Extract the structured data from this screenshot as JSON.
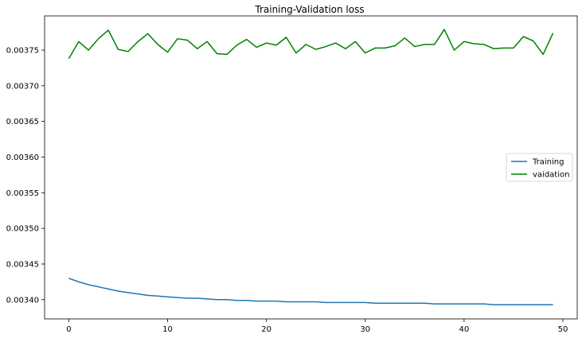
{
  "chart_data": {
    "type": "line",
    "title": "Training-Validation loss",
    "xlabel": "",
    "ylabel": "",
    "xlim": [
      -2.45,
      51.45
    ],
    "ylim": [
      0.003373,
      0.003798
    ],
    "xticks": [
      0,
      10,
      20,
      30,
      40,
      50
    ],
    "yticks": [
      0.0034,
      0.00345,
      0.0035,
      0.00355,
      0.0036,
      0.00365,
      0.0037,
      0.00375
    ],
    "ytick_labels": [
      "0.00340",
      "0.00345",
      "0.00350",
      "0.00355",
      "0.00360",
      "0.00365",
      "0.00370",
      "0.00375"
    ],
    "grid": false,
    "legend_position": "center-right",
    "x": [
      0,
      1,
      2,
      3,
      4,
      5,
      6,
      7,
      8,
      9,
      10,
      11,
      12,
      13,
      14,
      15,
      16,
      17,
      18,
      19,
      20,
      21,
      22,
      23,
      24,
      25,
      26,
      27,
      28,
      29,
      30,
      31,
      32,
      33,
      34,
      35,
      36,
      37,
      38,
      39,
      40,
      41,
      42,
      43,
      44,
      45,
      46,
      47,
      48,
      49
    ],
    "series": [
      {
        "name": "Training",
        "color": "#1f77b4",
        "values": [
          0.00343,
          0.003425,
          0.003421,
          0.003418,
          0.003415,
          0.003412,
          0.00341,
          0.003408,
          0.003406,
          0.003405,
          0.003404,
          0.003403,
          0.003402,
          0.003402,
          0.003401,
          0.0034,
          0.0034,
          0.003399,
          0.003399,
          0.003398,
          0.003398,
          0.003398,
          0.003397,
          0.003397,
          0.003397,
          0.003397,
          0.003396,
          0.003396,
          0.003396,
          0.003396,
          0.003396,
          0.003395,
          0.003395,
          0.003395,
          0.003395,
          0.003395,
          0.003395,
          0.003394,
          0.003394,
          0.003394,
          0.003394,
          0.003394,
          0.003394,
          0.003393,
          0.003393,
          0.003393,
          0.003393,
          0.003393,
          0.003393,
          0.003393
        ]
      },
      {
        "name": "vaidation",
        "color": "#008000",
        "values": [
          0.003738,
          0.003762,
          0.00375,
          0.003766,
          0.003778,
          0.003751,
          0.003748,
          0.003762,
          0.003773,
          0.003758,
          0.003747,
          0.003766,
          0.003764,
          0.003752,
          0.003762,
          0.003745,
          0.003744,
          0.003757,
          0.003765,
          0.003754,
          0.00376,
          0.003757,
          0.003768,
          0.003746,
          0.003758,
          0.003751,
          0.003755,
          0.00376,
          0.003752,
          0.003762,
          0.003746,
          0.003753,
          0.003753,
          0.003756,
          0.003767,
          0.003755,
          0.003758,
          0.003758,
          0.003779,
          0.00375,
          0.003762,
          0.003759,
          0.003758,
          0.003752,
          0.003753,
          0.003753,
          0.003769,
          0.003763,
          0.003744,
          0.003774
        ]
      }
    ]
  }
}
